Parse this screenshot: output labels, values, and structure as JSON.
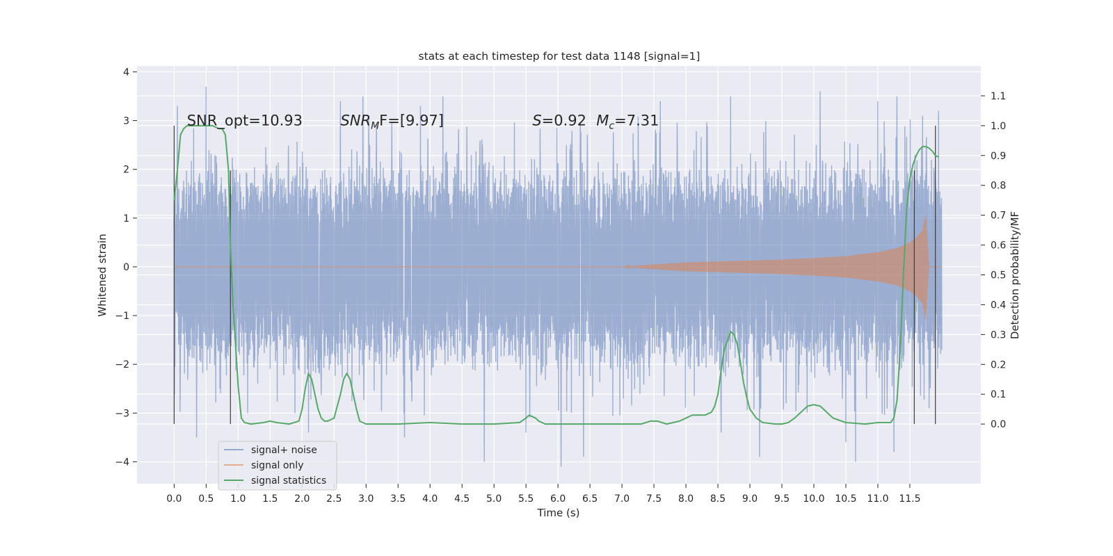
{
  "chart_data": {
    "type": "line",
    "title": "stats at each timestep for test data 1148 [signal=1]",
    "xlabel": "Time (s)",
    "ylabel": "Whitened strain",
    "y2label": "Detection probability/MF",
    "xlim": [
      -0.58,
      12.61
    ],
    "ylim": [
      -4.45,
      4.12
    ],
    "y2lim": [
      -0.2,
      1.2
    ],
    "x_ticks": [
      0.0,
      0.5,
      1.0,
      1.5,
      2.0,
      2.5,
      3.0,
      3.5,
      4.0,
      4.5,
      5.0,
      5.5,
      6.0,
      6.5,
      7.0,
      7.5,
      8.0,
      8.5,
      9.0,
      9.5,
      10.0,
      10.5,
      11.0,
      11.5
    ],
    "x_tick_labels": [
      "0.0",
      "0.5",
      "1.0",
      "1.5",
      "2.0",
      "2.5",
      "3.0",
      "3.5",
      "4.0",
      "4.5",
      "5.0",
      "5.5",
      "6.0",
      "6.5",
      "7.0",
      "7.5",
      "8.0",
      "8.5",
      "9.0",
      "9.5",
      "10.0",
      "10.5",
      "11.0",
      "11.5"
    ],
    "y_ticks": [
      -4,
      -3,
      -2,
      -1,
      0,
      1,
      2,
      3,
      4
    ],
    "y_tick_labels": [
      "−4",
      "−3",
      "−2",
      "−1",
      "0",
      "1",
      "2",
      "3",
      "4"
    ],
    "y2_ticks": [
      0.0,
      0.1,
      0.2,
      0.3,
      0.4,
      0.5,
      0.6,
      0.7,
      0.8,
      0.9,
      1.0,
      1.1
    ],
    "y2_tick_labels": [
      "0.0",
      "0.1",
      "0.2",
      "0.3",
      "0.4",
      "0.5",
      "0.6",
      "0.7",
      "0.8",
      "0.9",
      "1.0",
      "1.1"
    ],
    "grid": true,
    "legend_position": "lower-left",
    "series": [
      {
        "name": "signal+ noise",
        "axis": "left",
        "color": "#4c72b0",
        "x_range": [
          0.0,
          12.0
        ],
        "band_typical": 1.6,
        "peaks": [
          {
            "x": 0.05,
            "y": 3.3
          },
          {
            "x": 0.5,
            "y": 3.7
          },
          {
            "x": 0.35,
            "y": -3.5
          },
          {
            "x": 1.15,
            "y": -3.0
          },
          {
            "x": 2.1,
            "y": -3.4
          },
          {
            "x": 2.6,
            "y": 3.4
          },
          {
            "x": 2.95,
            "y": 3.5
          },
          {
            "x": 3.6,
            "y": -3.5
          },
          {
            "x": 3.85,
            "y": 3.3
          },
          {
            "x": 4.2,
            "y": 3.5
          },
          {
            "x": 4.85,
            "y": -4.0
          },
          {
            "x": 5.5,
            "y": -3.4
          },
          {
            "x": 6.05,
            "y": -4.1
          },
          {
            "x": 6.4,
            "y": -3.9
          },
          {
            "x": 7.6,
            "y": 3.4
          },
          {
            "x": 8.55,
            "y": -3.4
          },
          {
            "x": 8.7,
            "y": 3.5
          },
          {
            "x": 9.15,
            "y": -3.9
          },
          {
            "x": 10.1,
            "y": 3.6
          },
          {
            "x": 10.5,
            "y": -3.6
          },
          {
            "x": 10.65,
            "y": -4.0
          },
          {
            "x": 11.0,
            "y": 3.4
          },
          {
            "x": 11.25,
            "y": -3.8
          },
          {
            "x": 11.3,
            "y": 3.5
          },
          {
            "x": 11.7,
            "y": 3.1
          },
          {
            "x": 11.95,
            "y": 3.2
          },
          {
            "x": 11.8,
            "y": -2.9
          }
        ]
      },
      {
        "name": "signal only",
        "axis": "left",
        "color": "#dd8452",
        "x": [
          0.0,
          7.0,
          7.5,
          8.0,
          8.5,
          9.0,
          9.5,
          10.0,
          10.5,
          11.0,
          11.3,
          11.5,
          11.6,
          11.7,
          11.75,
          11.8,
          12.0
        ],
        "envelope": [
          0.0,
          0.0,
          0.05,
          0.09,
          0.11,
          0.13,
          0.15,
          0.18,
          0.22,
          0.3,
          0.38,
          0.5,
          0.6,
          0.75,
          1.1,
          0.0,
          0.0
        ]
      },
      {
        "name": "signal statistics",
        "axis": "right",
        "color": "#55a868",
        "x": [
          0.0,
          0.05,
          0.1,
          0.15,
          0.2,
          0.3,
          0.4,
          0.5,
          0.6,
          0.7,
          0.75,
          0.8,
          0.85,
          0.88,
          0.92,
          0.95,
          1.0,
          1.05,
          1.1,
          1.2,
          1.4,
          1.5,
          1.6,
          1.8,
          1.95,
          2.0,
          2.05,
          2.1,
          2.15,
          2.2,
          2.25,
          2.3,
          2.35,
          2.4,
          2.5,
          2.6,
          2.65,
          2.7,
          2.75,
          2.8,
          2.85,
          2.9,
          3.0,
          3.2,
          3.5,
          4.0,
          4.5,
          5.0,
          5.4,
          5.5,
          5.55,
          5.6,
          5.65,
          5.7,
          5.8,
          6.0,
          6.5,
          7.0,
          7.3,
          7.45,
          7.55,
          7.7,
          7.9,
          8.0,
          8.1,
          8.2,
          8.3,
          8.4,
          8.45,
          8.5,
          8.55,
          8.6,
          8.65,
          8.7,
          8.75,
          8.8,
          8.85,
          8.9,
          8.95,
          9.0,
          9.1,
          9.2,
          9.4,
          9.5,
          9.6,
          9.7,
          9.8,
          9.9,
          10.0,
          10.1,
          10.2,
          10.3,
          10.5,
          10.8,
          11.0,
          11.1,
          11.2,
          11.25,
          11.3,
          11.35,
          11.4,
          11.45,
          11.5,
          11.55,
          11.6,
          11.65,
          11.7,
          11.75,
          11.8,
          11.85,
          11.9,
          11.95
        ],
        "y": [
          0.75,
          0.85,
          0.97,
          0.99,
          1.0,
          1.0,
          1.0,
          1.0,
          1.0,
          0.99,
          0.99,
          0.97,
          0.85,
          0.6,
          0.4,
          0.3,
          0.13,
          0.02,
          0.005,
          0.0,
          0.005,
          0.01,
          0.005,
          0.0,
          0.01,
          0.05,
          0.12,
          0.17,
          0.15,
          0.1,
          0.05,
          0.02,
          0.01,
          0.01,
          0.02,
          0.1,
          0.15,
          0.17,
          0.15,
          0.1,
          0.05,
          0.01,
          0.0,
          0.0,
          0.0,
          0.005,
          0.0,
          0.0,
          0.005,
          0.02,
          0.03,
          0.025,
          0.02,
          0.01,
          0.0,
          0.0,
          0.0,
          0.0,
          0.0,
          0.01,
          0.01,
          0.0,
          0.01,
          0.02,
          0.03,
          0.03,
          0.03,
          0.04,
          0.06,
          0.1,
          0.18,
          0.25,
          0.28,
          0.31,
          0.3,
          0.27,
          0.21,
          0.14,
          0.09,
          0.05,
          0.02,
          0.005,
          0.0,
          0.0,
          0.005,
          0.02,
          0.04,
          0.06,
          0.065,
          0.06,
          0.04,
          0.02,
          0.005,
          0.0,
          0.005,
          0.005,
          0.005,
          0.02,
          0.08,
          0.25,
          0.5,
          0.72,
          0.82,
          0.87,
          0.9,
          0.92,
          0.93,
          0.93,
          0.925,
          0.915,
          0.9,
          0.895
        ]
      }
    ],
    "vertical_lines": [
      {
        "x": 0.0,
        "y_from": 0.0,
        "y_to": 1.0
      },
      {
        "x": 0.88,
        "y_from": 0.0,
        "y_to": 0.85
      },
      {
        "x": 11.57,
        "y_from": 0.0,
        "y_to": 0.85
      },
      {
        "x": 11.9,
        "y_from": 0.0,
        "y_to": 1.0
      }
    ],
    "annotations": [
      {
        "x": 0.2,
        "y": 3.0,
        "text": "SNR_opt=10.93"
      },
      {
        "x": 2.6,
        "y": 3.0,
        "pre": "SNR",
        "sub": "M",
        "post": "F=[9.97]",
        "italic": true
      },
      {
        "x": 5.6,
        "y": 3.0,
        "pre": "S",
        "post": "=0.92",
        "italic": true
      },
      {
        "x": 6.6,
        "y": 3.0,
        "pre": "M",
        "sub": "c",
        "post": "=7.31",
        "italic": true
      }
    ]
  }
}
